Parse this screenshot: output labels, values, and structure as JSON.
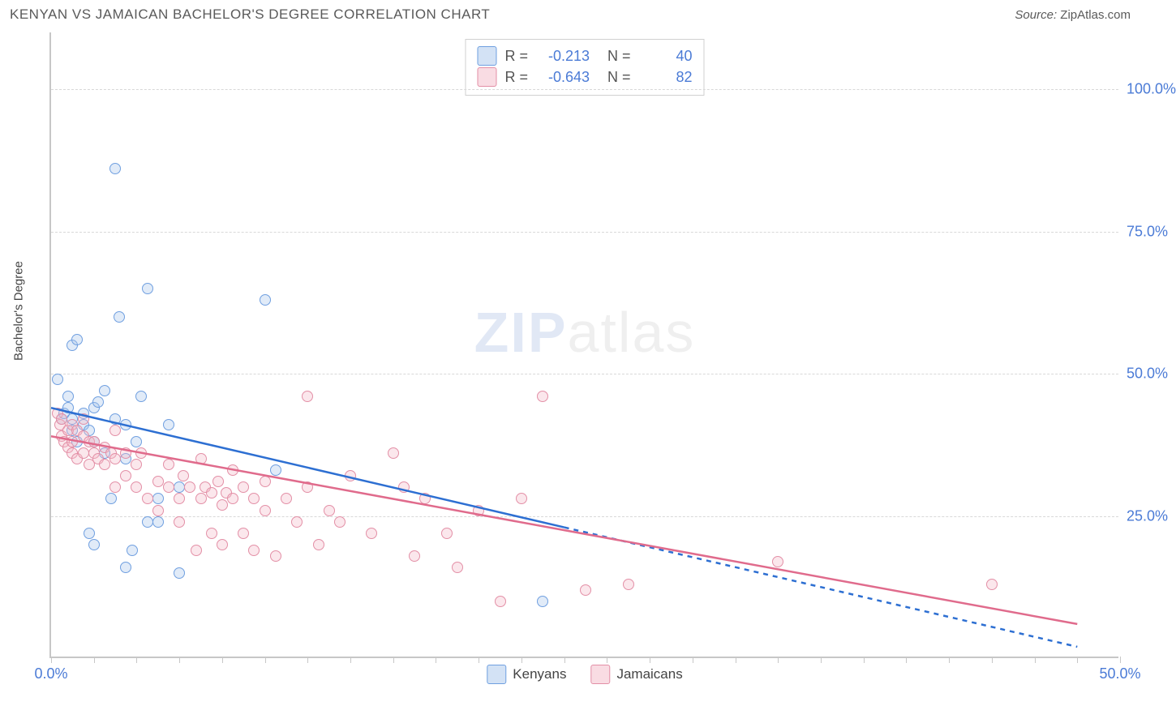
{
  "header": {
    "title": "KENYAN VS JAMAICAN BACHELOR'S DEGREE CORRELATION CHART",
    "source_label": "Source:",
    "source_name": "ZipAtlas.com"
  },
  "watermark": {
    "zip": "ZIP",
    "atlas": "atlas"
  },
  "chart": {
    "type": "scatter",
    "ylabel": "Bachelor's Degree",
    "background_color": "#ffffff",
    "grid_color": "#d8d8d8",
    "axis_color": "#c7c7c7",
    "tick_label_color": "#4b7bd6",
    "xlim": [
      0,
      50
    ],
    "ylim": [
      0,
      110
    ],
    "yticks": [
      {
        "v": 25,
        "label": "25.0%"
      },
      {
        "v": 50,
        "label": "50.0%"
      },
      {
        "v": 75,
        "label": "75.0%"
      },
      {
        "v": 100,
        "label": "100.0%"
      }
    ],
    "xticks": [
      {
        "v": 0,
        "label": "0.0%"
      },
      {
        "v": 50,
        "label": "50.0%"
      }
    ],
    "xminor_step": 2,
    "marker_radius": 7,
    "marker_border_width": 1.5,
    "marker_fill_opacity": 0.35,
    "series": [
      {
        "name": "Kenyans",
        "color_border": "#6f9fe0",
        "color_fill": "#a8c5ec",
        "R": "-0.213",
        "N": "40",
        "points": [
          [
            0.3,
            49
          ],
          [
            0.5,
            42
          ],
          [
            0.6,
            43
          ],
          [
            0.8,
            44
          ],
          [
            0.8,
            46
          ],
          [
            1.0,
            40
          ],
          [
            1.0,
            42
          ],
          [
            1.0,
            55
          ],
          [
            1.2,
            38
          ],
          [
            1.2,
            56
          ],
          [
            1.5,
            41
          ],
          [
            1.5,
            43
          ],
          [
            1.8,
            22
          ],
          [
            1.8,
            40
          ],
          [
            2.0,
            20
          ],
          [
            2.0,
            38
          ],
          [
            2.0,
            44
          ],
          [
            2.2,
            45
          ],
          [
            2.5,
            36
          ],
          [
            2.5,
            47
          ],
          [
            2.8,
            28
          ],
          [
            3.0,
            42
          ],
          [
            3.0,
            86
          ],
          [
            3.2,
            60
          ],
          [
            3.5,
            16
          ],
          [
            3.5,
            35
          ],
          [
            3.5,
            41
          ],
          [
            3.8,
            19
          ],
          [
            4.0,
            38
          ],
          [
            4.2,
            46
          ],
          [
            4.5,
            24
          ],
          [
            4.5,
            65
          ],
          [
            5.0,
            24
          ],
          [
            5.0,
            28
          ],
          [
            5.5,
            41
          ],
          [
            6.0,
            30
          ],
          [
            6.0,
            15
          ],
          [
            10.0,
            63
          ],
          [
            10.5,
            33
          ],
          [
            23.0,
            10
          ]
        ],
        "trend": {
          "color": "#2d6fd2",
          "width": 2.5,
          "solid": {
            "x1": 0.0,
            "y1": 44,
            "x2": 24,
            "y2": 23
          },
          "dashed": {
            "x1": 24,
            "y1": 23,
            "x2": 48,
            "y2": 2
          }
        }
      },
      {
        "name": "Jamaicans",
        "color_border": "#e38fa6",
        "color_fill": "#f4b9c8",
        "R": "-0.643",
        "N": "82",
        "points": [
          [
            0.3,
            43
          ],
          [
            0.4,
            41
          ],
          [
            0.5,
            39
          ],
          [
            0.5,
            42
          ],
          [
            0.6,
            38
          ],
          [
            0.8,
            37
          ],
          [
            0.8,
            40
          ],
          [
            1.0,
            36
          ],
          [
            1.0,
            38
          ],
          [
            1.0,
            41
          ],
          [
            1.2,
            35
          ],
          [
            1.2,
            40
          ],
          [
            1.5,
            36
          ],
          [
            1.5,
            39
          ],
          [
            1.5,
            42
          ],
          [
            1.8,
            34
          ],
          [
            1.8,
            38
          ],
          [
            2.0,
            36
          ],
          [
            2.0,
            38
          ],
          [
            2.2,
            35
          ],
          [
            2.5,
            34
          ],
          [
            2.5,
            37
          ],
          [
            2.8,
            36
          ],
          [
            3.0,
            30
          ],
          [
            3.0,
            35
          ],
          [
            3.0,
            40
          ],
          [
            3.5,
            32
          ],
          [
            3.5,
            36
          ],
          [
            4.0,
            30
          ],
          [
            4.0,
            34
          ],
          [
            4.2,
            36
          ],
          [
            4.5,
            28
          ],
          [
            5.0,
            31
          ],
          [
            5.0,
            26
          ],
          [
            5.5,
            30
          ],
          [
            5.5,
            34
          ],
          [
            6.0,
            24
          ],
          [
            6.0,
            28
          ],
          [
            6.2,
            32
          ],
          [
            6.5,
            30
          ],
          [
            6.8,
            19
          ],
          [
            7.0,
            28
          ],
          [
            7.0,
            35
          ],
          [
            7.2,
            30
          ],
          [
            7.5,
            22
          ],
          [
            7.5,
            29
          ],
          [
            7.8,
            31
          ],
          [
            8.0,
            27
          ],
          [
            8.0,
            20
          ],
          [
            8.2,
            29
          ],
          [
            8.5,
            28
          ],
          [
            8.5,
            33
          ],
          [
            9.0,
            22
          ],
          [
            9.0,
            30
          ],
          [
            9.5,
            28
          ],
          [
            9.5,
            19
          ],
          [
            10.0,
            26
          ],
          [
            10.0,
            31
          ],
          [
            10.5,
            18
          ],
          [
            11.0,
            28
          ],
          [
            11.5,
            24
          ],
          [
            12.0,
            30
          ],
          [
            12.0,
            46
          ],
          [
            12.5,
            20
          ],
          [
            13.0,
            26
          ],
          [
            13.5,
            24
          ],
          [
            14.0,
            32
          ],
          [
            15.0,
            22
          ],
          [
            16.0,
            36
          ],
          [
            16.5,
            30
          ],
          [
            17.0,
            18
          ],
          [
            17.5,
            28
          ],
          [
            18.5,
            22
          ],
          [
            19.0,
            16
          ],
          [
            20.0,
            26
          ],
          [
            21.0,
            10
          ],
          [
            22.0,
            28
          ],
          [
            23.0,
            46
          ],
          [
            25.0,
            12
          ],
          [
            27.0,
            13
          ],
          [
            34.0,
            17
          ],
          [
            44.0,
            13
          ]
        ],
        "trend": {
          "color": "#e06b8c",
          "width": 2.5,
          "solid": {
            "x1": 0.0,
            "y1": 39,
            "x2": 48,
            "y2": 6
          }
        }
      }
    ],
    "bottom_legend_labels": [
      "Kenyans",
      "Jamaicans"
    ]
  }
}
